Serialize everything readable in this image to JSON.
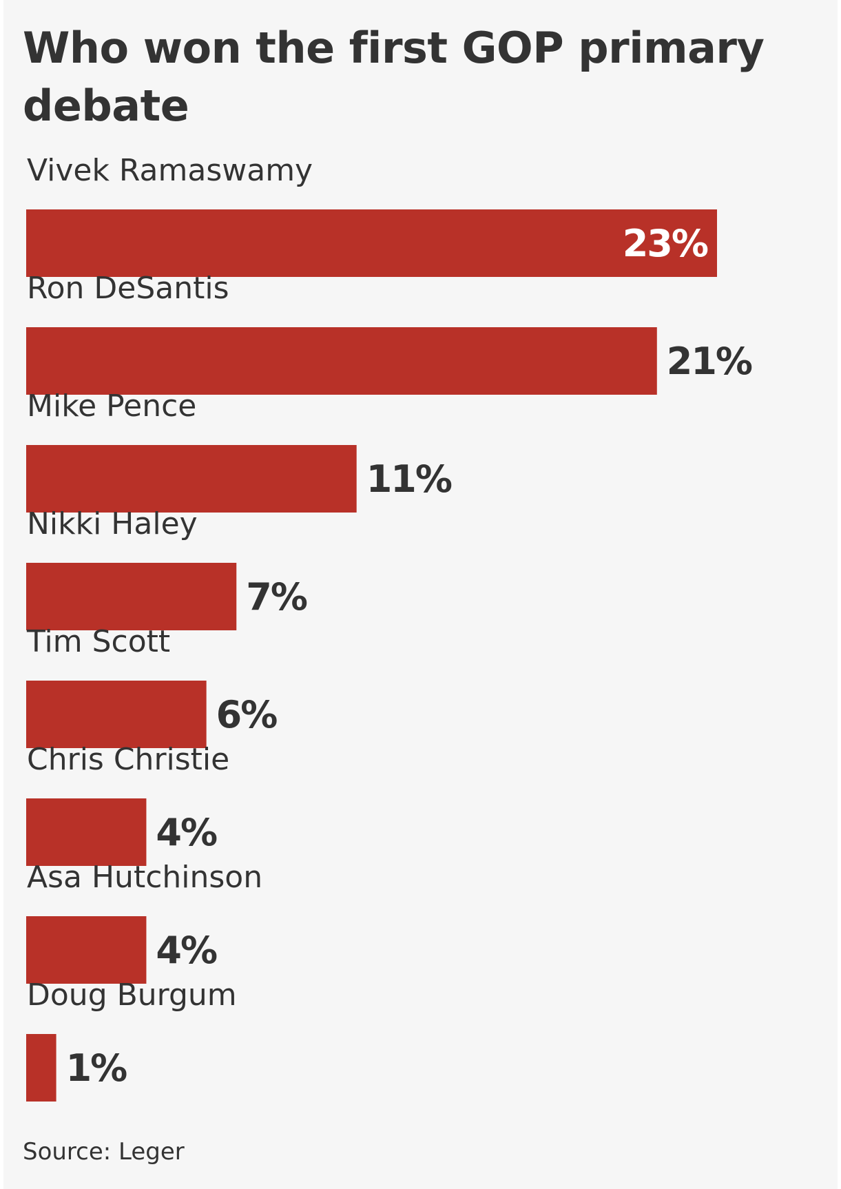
{
  "chart_data": {
    "type": "bar",
    "orientation": "horizontal",
    "title": "Who won the first GOP primary debate",
    "categories": [
      "Vivek Ramaswamy",
      "Ron DeSantis",
      "Mike Pence",
      "Nikki Haley",
      "Tim Scott",
      "Chris Christie",
      "Asa Hutchinson",
      "Doug Burgum"
    ],
    "values": [
      23,
      21,
      11,
      7,
      6,
      4,
      4,
      1
    ],
    "value_labels": [
      "23%",
      "21%",
      "11%",
      "7%",
      "6%",
      "4%",
      "4%",
      "1%"
    ],
    "unit": "%",
    "xlim": [
      0,
      23
    ],
    "grid": false,
    "legend": "none",
    "source": "Source: Leger"
  },
  "colors": {
    "bar": "#b83128",
    "text": "#333333",
    "value_inside": "#ffffff",
    "background": "#f6f6f6"
  }
}
